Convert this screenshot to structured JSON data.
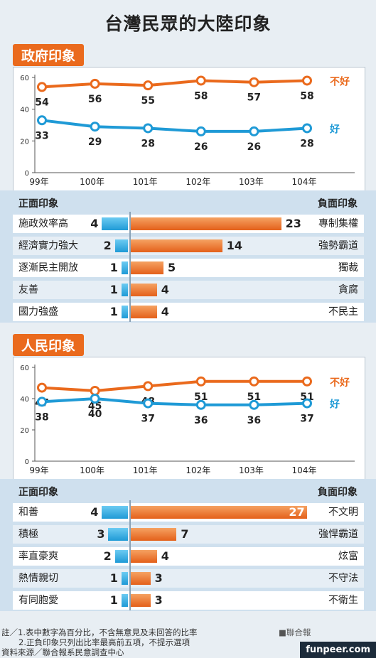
{
  "title": "台灣民眾的大陸印象",
  "chart_data": [
    {
      "type": "line",
      "section": "政府印象",
      "x": [
        "99年",
        "100年",
        "101年",
        "102年",
        "103年",
        "104年"
      ],
      "yticks": [
        0,
        20,
        40,
        60
      ],
      "ylim": [
        0,
        60
      ],
      "series": [
        {
          "name": "不好",
          "color": "#ea6a1d",
          "values": [
            54,
            56,
            55,
            58,
            57,
            58
          ]
        },
        {
          "name": "好",
          "color": "#1f9ad6",
          "values": [
            33,
            29,
            28,
            26,
            26,
            28
          ]
        }
      ]
    },
    {
      "type": "bar",
      "section": "政府印象",
      "positive_header": "正面印象",
      "negative_header": "負面印象",
      "rows": [
        {
          "positive": "施政效率高",
          "pos_value": 4,
          "negative": "專制集權",
          "neg_value": 23
        },
        {
          "positive": "經濟實力強大",
          "pos_value": 2,
          "negative": "強勢霸道",
          "neg_value": 14
        },
        {
          "positive": "逐漸民主開放",
          "pos_value": 1,
          "negative": "獨裁",
          "neg_value": 5
        },
        {
          "positive": "友善",
          "pos_value": 1,
          "negative": "貪腐",
          "neg_value": 4
        },
        {
          "positive": "國力強盛",
          "pos_value": 1,
          "negative": "不民主",
          "neg_value": 4
        }
      ]
    },
    {
      "type": "line",
      "section": "人民印象",
      "x": [
        "99年",
        "100年",
        "101年",
        "102年",
        "103年",
        "104年"
      ],
      "yticks": [
        0,
        20,
        40,
        60
      ],
      "ylim": [
        0,
        60
      ],
      "series": [
        {
          "name": "不好",
          "color": "#ea6a1d",
          "values": [
            47,
            45,
            48,
            51,
            51,
            51
          ]
        },
        {
          "name": "好",
          "color": "#1f9ad6",
          "values": [
            38,
            40,
            37,
            36,
            36,
            37
          ]
        }
      ]
    },
    {
      "type": "bar",
      "section": "人民印象",
      "positive_header": "正面印象",
      "negative_header": "負面印象",
      "rows": [
        {
          "positive": "和善",
          "pos_value": 4,
          "negative": "不文明",
          "neg_value": 27
        },
        {
          "positive": "積極",
          "pos_value": 3,
          "negative": "強悍霸道",
          "neg_value": 7
        },
        {
          "positive": "率直豪爽",
          "pos_value": 2,
          "negative": "炫富",
          "neg_value": 4
        },
        {
          "positive": "熱情親切",
          "pos_value": 1,
          "negative": "不守法",
          "neg_value": 3
        },
        {
          "positive": "有同胞愛",
          "pos_value": 1,
          "negative": "不衛生",
          "neg_value": 3
        }
      ]
    }
  ],
  "footer": {
    "note1": "註／1.表中數字為百分比，不含無意見及未回答的比率",
    "note2": "2.正負印象只列出比率最高前五項，不提示選項",
    "source": "資料來源／聯合報系民意調查中心",
    "publisher": "■聯合報",
    "brand": "funpeer.com"
  }
}
